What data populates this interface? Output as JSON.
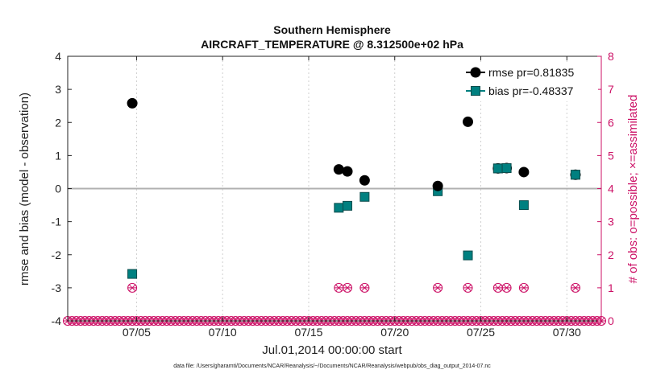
{
  "chart_data": {
    "type": "scatter",
    "title_line1": "Southern Hemisphere",
    "title_line2": "AIRCRAFT_TEMPERATURE @ 8.312500e+02 hPa",
    "xlabel": "Jul.01,2014 00:00:00 start",
    "ylabel_left": "rmse and bias (model - observation)",
    "ylabel_right": "# of obs: o=possible; ×=assimilated",
    "xlim": [
      1,
      32
    ],
    "ylim_left": [
      -4,
      4
    ],
    "ylim_right": [
      0,
      8
    ],
    "x_ticks": [
      {
        "value": 5,
        "label": "07/05"
      },
      {
        "value": 10,
        "label": "07/10"
      },
      {
        "value": 15,
        "label": "07/15"
      },
      {
        "value": 20,
        "label": "07/20"
      },
      {
        "value": 25,
        "label": "07/25"
      },
      {
        "value": 30,
        "label": "07/30"
      }
    ],
    "y_ticks_left": [
      "-4",
      "-3",
      "-2",
      "-1",
      "0",
      "1",
      "2",
      "3",
      "4"
    ],
    "y_ticks_right": [
      "0",
      "1",
      "2",
      "3",
      "4",
      "5",
      "6",
      "7",
      "8"
    ],
    "series": [
      {
        "name": "rmse",
        "legend": "rmse pr=0.81835",
        "color": "#000000",
        "marker": "circle",
        "x": [
          4.75,
          16.75,
          17.25,
          18.25,
          22.5,
          24.25,
          26.0,
          26.5,
          27.5,
          30.5
        ],
        "values": [
          2.58,
          0.58,
          0.52,
          0.25,
          0.08,
          2.02,
          0.61,
          0.62,
          0.5,
          0.42
        ]
      },
      {
        "name": "bias",
        "legend": "bias pr=-0.48337",
        "color": "#008080",
        "marker": "square",
        "x": [
          4.75,
          16.75,
          17.25,
          18.25,
          22.5,
          24.25,
          26.0,
          26.5,
          27.5,
          30.5
        ],
        "values": [
          -2.58,
          -0.58,
          -0.52,
          -0.25,
          -0.08,
          -2.02,
          0.61,
          0.62,
          -0.5,
          0.42
        ]
      }
    ],
    "obs_count": {
      "color": "#cc1166",
      "possible_x": [
        4.75,
        16.75,
        17.25,
        18.25,
        22.5,
        24.25,
        26.0,
        26.5,
        27.5,
        30.5
      ],
      "possible_values": [
        1,
        1,
        1,
        1,
        1,
        1,
        1,
        1,
        1,
        1
      ],
      "zero_x_start": 1,
      "zero_x_end": 32,
      "zero_x_step": 0.25,
      "zero_value": 0
    }
  },
  "footer": "data file: /Users/gharamti/Documents/NCAR/Reanalysis/~/Documents/NCAR/Reanalysis/webpub/obs_diag_output_2014-07.nc"
}
